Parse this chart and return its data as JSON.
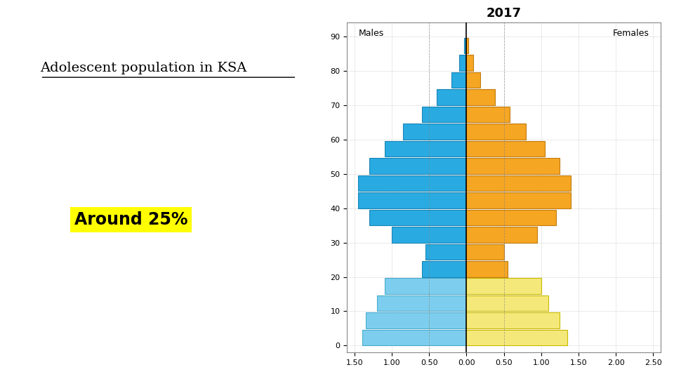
{
  "title": "2017",
  "males_label": "Males",
  "females_label": "Females",
  "bg_color": "#ffffff",
  "age_groups": [
    0,
    5,
    10,
    15,
    20,
    25,
    30,
    35,
    40,
    45,
    50,
    55,
    60,
    65,
    70,
    75,
    80,
    85
  ],
  "males": [
    1.4,
    1.35,
    1.2,
    1.1,
    0.6,
    0.55,
    1.0,
    1.3,
    1.45,
    1.45,
    1.3,
    1.1,
    0.85,
    0.6,
    0.4,
    0.2,
    0.1,
    0.03
  ],
  "females": [
    1.35,
    1.25,
    1.1,
    1.0,
    0.55,
    0.5,
    0.95,
    1.2,
    1.4,
    1.4,
    1.25,
    1.05,
    0.8,
    0.58,
    0.38,
    0.18,
    0.09,
    0.02
  ],
  "male_colors": [
    "#7DCEEE",
    "#7DCEEE",
    "#7DCEEE",
    "#7DCEEE",
    "#29ABE2",
    "#29ABE2",
    "#29ABE2",
    "#29ABE2",
    "#29ABE2",
    "#29ABE2",
    "#29ABE2",
    "#29ABE2",
    "#29ABE2",
    "#29ABE2",
    "#29ABE2",
    "#29ABE2",
    "#29ABE2",
    "#29ABE2"
  ],
  "female_colors": [
    "#F5E87A",
    "#F5E87A",
    "#F5E87A",
    "#F5E87A",
    "#F5A623",
    "#F5A623",
    "#F5A623",
    "#F5A623",
    "#F5A623",
    "#F5A623",
    "#F5A623",
    "#F5A623",
    "#F5A623",
    "#F5A623",
    "#F5A623",
    "#F5A623",
    "#F5A623",
    "#F5A623"
  ],
  "male_edge_colors": [
    "#4AAACB",
    "#4AAACB",
    "#4AAACB",
    "#4AAACB",
    "#1A85B5",
    "#1A85B5",
    "#1A85B5",
    "#1A85B5",
    "#1A85B5",
    "#1A85B5",
    "#1A85B5",
    "#1A85B5",
    "#1A85B5",
    "#1A85B5",
    "#1A85B5",
    "#1A85B5",
    "#1A85B5",
    "#1A85B5"
  ],
  "female_edge_colors": [
    "#C8B800",
    "#C8B800",
    "#C8B800",
    "#C8B800",
    "#C07B10",
    "#C07B10",
    "#C07B10",
    "#C07B10",
    "#C07B10",
    "#C07B10",
    "#C07B10",
    "#C07B10",
    "#C07B10",
    "#C07B10",
    "#C07B10",
    "#C07B10",
    "#C07B10",
    "#C07B10"
  ],
  "xlim": [
    -1.6,
    2.6
  ],
  "ylim": [
    -2,
    94
  ],
  "xticks": [
    -1.5,
    -1.0,
    -0.5,
    0.0,
    0.5,
    1.0,
    1.5,
    2.0,
    2.5
  ],
  "xticklabels": [
    "1.50",
    "1.00",
    "0.50",
    "0.00",
    "0.50",
    "1.00",
    "1.50",
    "2.00",
    "2.50"
  ],
  "yticks": [
    0,
    10,
    20,
    30,
    40,
    50,
    60,
    70,
    80,
    90
  ],
  "annotation_title": "Adolescent population in KSA",
  "annotation_pct": "Around 25%"
}
